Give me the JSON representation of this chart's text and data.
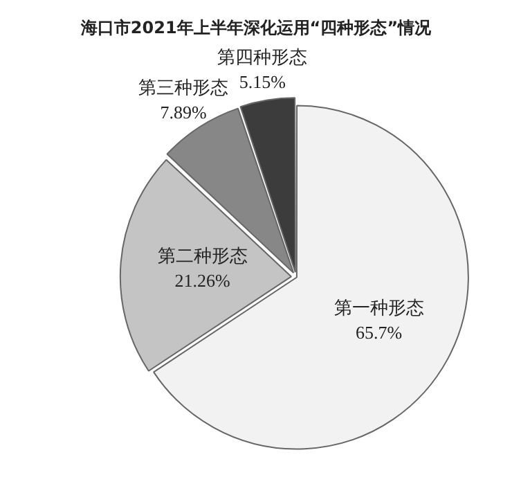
{
  "chart_data": {
    "type": "pie",
    "title": "海口市2021年上半年深化运用“四种形态”情况",
    "categories": [
      "第一种形态",
      "第二种形态",
      "第三种形态",
      "第四种形态"
    ],
    "values": [
      65.7,
      21.26,
      7.89,
      5.15
    ],
    "colors": [
      "#f2f2f2",
      "#c4c4c4",
      "#878787",
      "#3c3c3c"
    ],
    "value_labels": [
      "65.7%",
      "21.26%",
      "7.89%",
      "5.15%"
    ],
    "legend": false
  }
}
